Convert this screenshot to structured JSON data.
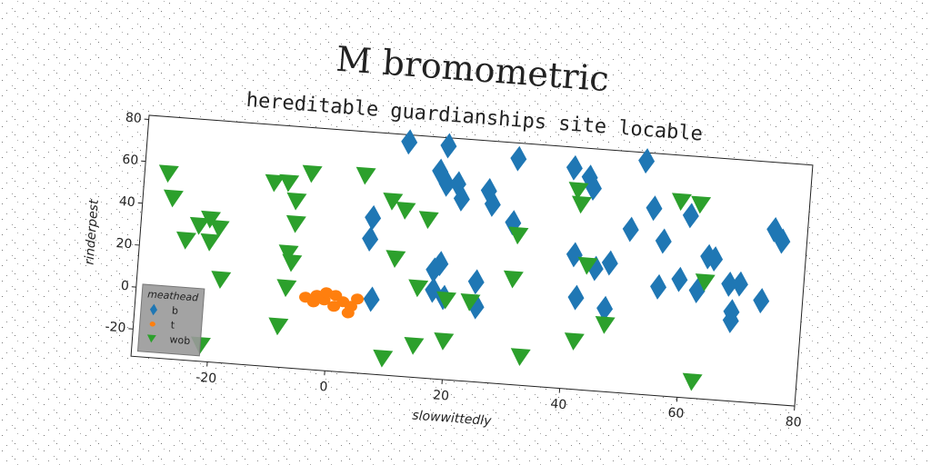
{
  "chart_data": {
    "type": "scatter",
    "title": "M bromometric",
    "subtitle": "hereditable guardianships site locable",
    "x_label": "slowwittedly",
    "y_label": "rinderpest",
    "legend_title": "meathead",
    "legend": "lower left",
    "xlim": [
      -33,
      80
    ],
    "ylim": [
      -33,
      82
    ],
    "xticks": [
      -20,
      0,
      20,
      40,
      60,
      80
    ],
    "yticks": [
      -20,
      0,
      20,
      40,
      60,
      80
    ],
    "grid": false,
    "series": [
      {
        "name": "b",
        "color": "#1f77b4",
        "marker": "diamond",
        "x": [
          11.4,
          18.1,
          30.1,
          39.7,
          42.4,
          43.2,
          51.8,
          17.0,
          18.3,
          20.2,
          21.0,
          25.5,
          26.3,
          30.0,
          6.2,
          6.0,
          17.2,
          18.2,
          17.3,
          19.2,
          24.5,
          24.8,
          7.0,
          40.8,
          41.6,
          44.5,
          46.9,
          46.6,
          50.0,
          53.7,
          55.7,
          55.4,
          58.9,
          60.0,
          62.0,
          63.5,
          64.6,
          67.4,
          69.2,
          68.1,
          68.1,
          73.0,
          74.4,
          75.8
        ],
        "y": [
          78.6,
          78.2,
          74.6,
          72.2,
          68.3,
          63.3,
          78.1,
          65.8,
          59.9,
          60.5,
          53.5,
          58.3,
          52,
          44,
          41.3,
          31.2,
          18.7,
          22,
          9.1,
          6,
          14.6,
          2.8,
          2.6,
          31,
          10.7,
          25.2,
          28.3,
          6.5,
          45,
          55.9,
          40.6,
          18.7,
          23,
          53.7,
          18.3,
          34.8,
          34,
          22.5,
          23,
          5.3,
          9.5,
          15.8,
          50,
          44.8
        ]
      },
      {
        "name": "t",
        "color": "#ff7f0e",
        "marker": "circle",
        "x": [
          -4.2,
          -2.3,
          -1,
          0.9,
          2.2,
          3.6,
          3.2,
          4.6,
          0.7,
          -2.8,
          -0.7
        ],
        "y": [
          1.2,
          2.5,
          0.6,
          3.1,
          0.4,
          -1.5,
          -4.7,
          2.2,
          -2.1,
          -0.7,
          4.1
        ]
      },
      {
        "name": "wob",
        "color": "#2ca02c",
        "marker": "triangle-down",
        "x": [
          -29,
          -27.9,
          -25.2,
          -23.1,
          -21.3,
          -21.1,
          -19.7,
          -18.8,
          -21.4,
          -10.9,
          -8.5,
          -7,
          -4.7,
          -6.8,
          -7.7,
          -7,
          -7.6,
          -8.5,
          4.4,
          9.3,
          11.6,
          15.6,
          10.5,
          14.7,
          19.6,
          23.7,
          9.6,
          14.7,
          19.7,
          31,
          30.7,
          32.9,
          40.6,
          41.3,
          43.1,
          41.8,
          46.8,
          58.2,
          61.5,
          63.2,
          62.3
        ],
        "y": [
          55,
          43.4,
          23.9,
          31.3,
          34.7,
          23.9,
          30.7,
          6.5,
          -25.4,
          54.3,
          54.8,
          46.4,
          60,
          35.6,
          21.4,
          17,
          4.9,
          -13.6,
          61,
          49.8,
          45.9,
          42.3,
          22.6,
          9.5,
          4.8,
          4.7,
          -25.1,
          -18,
          -14.8,
          38.1,
          17.1,
          -19.5,
          61.5,
          55,
          26.2,
          -10.2,
          -1.3,
          59.9,
          59.2,
          22.5,
          -25.2
        ]
      }
    ]
  }
}
